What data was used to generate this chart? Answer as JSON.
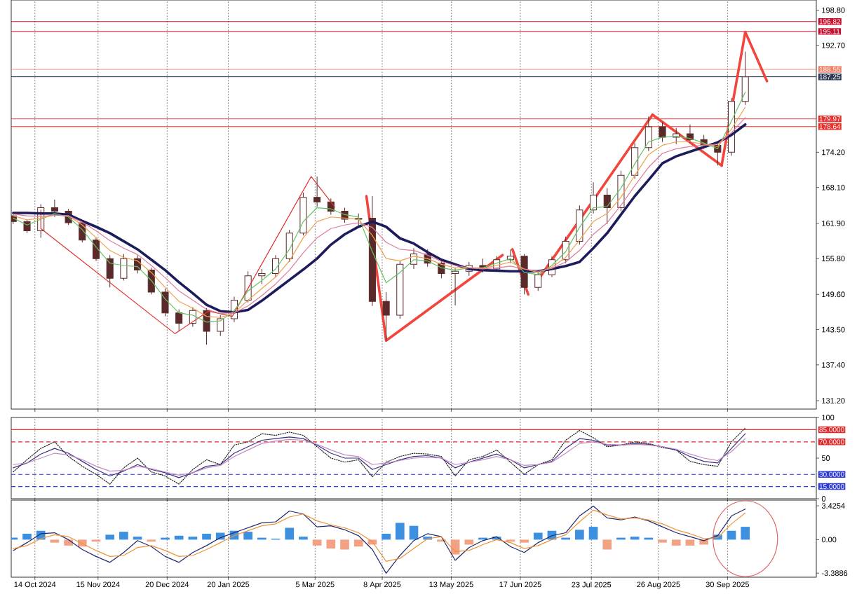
{
  "chart_data": [
    {
      "type": "candlestick",
      "color": "#5a2a2a",
      "x": [
        "2024-10-03",
        "2024-10-10",
        "2024-10-17",
        "2024-10-24",
        "2024-10-31",
        "2024-11-07",
        "2024-11-14",
        "2024-11-21",
        "2024-11-28",
        "2024-12-05",
        "2024-12-12",
        "2024-12-19",
        "2024-12-26",
        "2025-01-02",
        "2025-01-09",
        "2025-01-16",
        "2025-01-23",
        "2025-01-30",
        "2025-02-06",
        "2025-02-13",
        "2025-02-20",
        "2025-02-27",
        "2025-03-06",
        "2025-03-13",
        "2025-03-20",
        "2025-03-27",
        "2025-04-03",
        "2025-04-10",
        "2025-04-17",
        "2025-04-24",
        "2025-05-01",
        "2025-05-08",
        "2025-05-15",
        "2025-05-22",
        "2025-05-29",
        "2025-06-05",
        "2025-06-12",
        "2025-06-19",
        "2025-06-26",
        "2025-07-03",
        "2025-07-10",
        "2025-07-17",
        "2025-07-24",
        "2025-07-31",
        "2025-08-07",
        "2025-08-14",
        "2025-08-21",
        "2025-08-28",
        "2025-09-04",
        "2025-09-11",
        "2025-09-18",
        "2025-09-25",
        "2025-10-02",
        "2025-10-09"
      ],
      "ohlc": [
        [
          163.2,
          163.8,
          161.8,
          162.2
        ],
        [
          162.2,
          162.6,
          160.2,
          160.6
        ],
        [
          160.6,
          165.2,
          159.4,
          164.6
        ],
        [
          164.6,
          166.0,
          163.0,
          164.0
        ],
        [
          164.0,
          164.4,
          161.6,
          162.0
        ],
        [
          162.0,
          162.4,
          158.6,
          159.0
        ],
        [
          159.0,
          159.4,
          155.4,
          155.8
        ],
        [
          155.8,
          156.4,
          150.8,
          152.4
        ],
        [
          152.4,
          156.6,
          152.0,
          155.8
        ],
        [
          155.8,
          156.4,
          153.2,
          153.8
        ],
        [
          153.8,
          154.2,
          149.6,
          150.0
        ],
        [
          150.0,
          150.6,
          145.8,
          146.4
        ],
        [
          146.4,
          147.0,
          143.2,
          144.6
        ],
        [
          144.6,
          147.4,
          144.0,
          146.8
        ],
        [
          146.8,
          147.2,
          140.9,
          143.2
        ],
        [
          143.2,
          146.0,
          142.4,
          145.4
        ],
        [
          145.4,
          149.2,
          144.8,
          148.6
        ],
        [
          148.6,
          153.6,
          148.2,
          152.8
        ],
        [
          152.8,
          154.0,
          151.4,
          153.2
        ],
        [
          153.2,
          156.4,
          152.6,
          155.8
        ],
        [
          155.8,
          160.8,
          155.2,
          160.2
        ],
        [
          160.2,
          167.2,
          159.8,
          166.4
        ],
        [
          166.4,
          170.0,
          164.8,
          165.6
        ],
        [
          165.6,
          166.2,
          163.4,
          164.0
        ],
        [
          164.0,
          164.6,
          162.0,
          162.6
        ],
        [
          162.6,
          163.6,
          161.4,
          162.8
        ],
        [
          162.8,
          166.6,
          147.6,
          148.4
        ],
        [
          148.4,
          150.0,
          141.6,
          146.0
        ],
        [
          146.0,
          155.4,
          145.4,
          154.8
        ],
        [
          154.8,
          157.6,
          154.0,
          156.6
        ],
        [
          156.6,
          157.4,
          154.4,
          155.0
        ],
        [
          155.0,
          155.6,
          152.4,
          153.2
        ],
        [
          153.2,
          154.2,
          147.7,
          153.6
        ],
        [
          153.6,
          155.2,
          152.8,
          154.6
        ],
        [
          154.6,
          155.8,
          153.4,
          154.0
        ],
        [
          154.0,
          156.2,
          153.6,
          155.6
        ],
        [
          155.6,
          157.4,
          155.0,
          156.2
        ],
        [
          156.2,
          156.6,
          149.6,
          150.8
        ],
        [
          150.8,
          153.6,
          150.2,
          153.0
        ],
        [
          153.0,
          156.2,
          152.6,
          155.6
        ],
        [
          155.6,
          159.6,
          155.0,
          158.8
        ],
        [
          158.8,
          165.0,
          158.2,
          164.2
        ],
        [
          164.2,
          169.0,
          163.6,
          166.8
        ],
        [
          166.8,
          168.0,
          161.8,
          164.6
        ],
        [
          164.6,
          171.0,
          164.0,
          170.2
        ],
        [
          170.2,
          175.8,
          169.6,
          175.0
        ],
        [
          175.0,
          180.4,
          174.4,
          178.6
        ],
        [
          178.6,
          179.4,
          176.0,
          176.8
        ],
        [
          176.8,
          178.4,
          175.6,
          177.4
        ],
        [
          177.4,
          179.0,
          175.8,
          176.4
        ],
        [
          176.4,
          177.2,
          174.8,
          175.4
        ],
        [
          175.4,
          176.0,
          171.9,
          174.2
        ],
        [
          174.2,
          183.6,
          173.6,
          183.0
        ],
        [
          183.0,
          191.6,
          182.4,
          187.25
        ]
      ],
      "series": [
        {
          "type": "line",
          "color": "#1c1c5c",
          "values": [
            163.7,
            163.7,
            163.6,
            163.6,
            163.4,
            162.3,
            161.3,
            160.2,
            158.8,
            157.4,
            155.6,
            153.8,
            151.7,
            149.8,
            147.8,
            146.7,
            146.5,
            146.9,
            148.5,
            150.3,
            152.1,
            153.9,
            155.8,
            158.2,
            160.0,
            161.3,
            162.2,
            161.3,
            159.3,
            158.4,
            156.9,
            155.6,
            154.8,
            154.0,
            153.8,
            153.7,
            153.6,
            153.6,
            153.6,
            154.0,
            154.5,
            155.2,
            157.6,
            160.2,
            163.4,
            166.6,
            169.4,
            172.3,
            173.5,
            174.3,
            175.1,
            175.9,
            177.2,
            179.0
          ]
        },
        {
          "type": "line",
          "color": "#66c266",
          "values": [
            162.8,
            161.6,
            162.6,
            163.6,
            163.0,
            160.8,
            157.8,
            155.0,
            154.6,
            154.4,
            152.0,
            148.8,
            146.4,
            146.0,
            144.8,
            145.0,
            146.8,
            150.2,
            152.0,
            154.0,
            157.4,
            162.2,
            164.6,
            164.4,
            163.4,
            163.0,
            157.0,
            151.6,
            153.4,
            155.6,
            155.4,
            154.2,
            153.8,
            154.2,
            154.2,
            155.0,
            155.8,
            153.4,
            153.0,
            154.6,
            157.0,
            161.2,
            164.6,
            164.8,
            168.0,
            172.2,
            176.0,
            176.8,
            177.0,
            176.6,
            175.8,
            174.8,
            179.6,
            184.6
          ]
        },
        {
          "type": "line",
          "color": "#f0a050",
          "values": [
            163.2,
            162.5,
            162.8,
            163.3,
            163.2,
            161.6,
            159.4,
            157.2,
            156.0,
            155.4,
            153.4,
            150.8,
            148.4,
            147.2,
            145.8,
            145.6,
            146.4,
            148.6,
            150.6,
            152.6,
            155.4,
            159.4,
            162.2,
            163.0,
            162.8,
            162.6,
            159.8,
            155.8,
            155.4,
            156.2,
            155.8,
            154.8,
            154.2,
            154.2,
            154.1,
            154.6,
            155.2,
            154.0,
            153.4,
            154.3,
            156.0,
            159.0,
            162.2,
            163.6,
            166.4,
            170.2,
            173.8,
            175.4,
            176.0,
            176.0,
            175.6,
            175.2,
            178.2,
            182.0
          ]
        },
        {
          "type": "line",
          "color": "#e07aa0",
          "values": [
            163.5,
            163.2,
            163.1,
            163.3,
            163.2,
            162.1,
            160.6,
            158.9,
            157.6,
            156.5,
            154.6,
            152.5,
            150.2,
            148.6,
            147.0,
            146.3,
            146.4,
            147.6,
            149.4,
            151.4,
            153.8,
            156.8,
            159.4,
            161.0,
            161.6,
            162.0,
            161.2,
            158.6,
            157.4,
            157.2,
            156.4,
            155.3,
            154.6,
            154.2,
            154.0,
            154.2,
            154.5,
            154.0,
            153.6,
            154.1,
            155.2,
            157.2,
            160.0,
            162.0,
            165.0,
            168.4,
            171.6,
            174.0,
            174.8,
            175.2,
            175.4,
            175.6,
            177.6,
            180.2
          ]
        },
        {
          "type": "line",
          "color": "#e0302c",
          "x": [
            "2024-10-17",
            "2024-10-17",
            "2024-12-24",
            "2025-01-10",
            "2025-01-22",
            "2025-03-03",
            "2025-03-15"
          ],
          "values": [
            164.2,
            161.0,
            142.8,
            146.7,
            145.8,
            170.0,
            164.7
          ]
        },
        {
          "type": "line",
          "color": "#f2453d",
          "x": [
            "2025-03-31",
            "2025-04-10",
            "2025-06-08"
          ],
          "values": [
            166.6,
            141.6,
            156.4
          ]
        },
        {
          "type": "line",
          "color": "#f2453d",
          "x": [
            "2025-06-13",
            "2025-06-21"
          ],
          "values": [
            157.4,
            149.6
          ]
        },
        {
          "type": "line",
          "color": "#f2453d",
          "x": [
            "2025-06-26",
            "2025-08-23"
          ],
          "values": [
            152.1,
            180.7
          ]
        },
        {
          "type": "line",
          "color": "#f2453d",
          "x": [
            "2025-08-23",
            "2025-09-27"
          ],
          "values": [
            180.7,
            171.9
          ]
        },
        {
          "type": "line",
          "color": "#f2453d",
          "x": [
            "2025-09-27",
            "2025-10-09"
          ],
          "values": [
            171.9,
            195.0
          ]
        },
        {
          "type": "line",
          "color": "#f2453d",
          "x": [
            "2025-10-09",
            "2025-10-20"
          ],
          "values": [
            195.0,
            186.5
          ]
        }
      ],
      "xlim": [
        "2024-10-02",
        "2025-11-14"
      ],
      "xticks": [
        {
          "value": "2024-10-14",
          "label": null
        },
        {
          "value": "2024-11-15",
          "label": null
        },
        {
          "value": "2024-12-20",
          "label": null
        },
        {
          "value": "2025-01-20",
          "label": null
        },
        {
          "value": "2025-03-05",
          "label": null
        },
        {
          "value": "2025-04-08",
          "label": null
        },
        {
          "value": "2025-05-13",
          "label": null
        },
        {
          "value": "2025-06-17",
          "label": null
        },
        {
          "value": "2025-07-23",
          "label": null
        },
        {
          "value": "2025-08-26",
          "label": null
        },
        {
          "value": "2025-09-30",
          "label": null
        }
      ],
      "ylim": [
        129.75,
        200.55
      ],
      "yticks": [
        {
          "value": 131.2,
          "label": "131.20"
        },
        {
          "value": 137.4,
          "label": "137.40"
        },
        {
          "value": 143.5,
          "label": "143.50"
        },
        {
          "value": 149.6,
          "label": "149.60"
        },
        {
          "value": 155.8,
          "label": "155.80"
        },
        {
          "value": 161.9,
          "label": "161.90"
        },
        {
          "value": 168.1,
          "label": "168.10"
        },
        {
          "value": 174.2,
          "label": "174.20"
        },
        {
          "value": 192.7,
          "label": "192.70"
        },
        {
          "value": 198.8,
          "label": "198.80"
        }
      ],
      "ref_lines": [
        {
          "axis": "y",
          "value": 196.82,
          "label": "196.82",
          "color": "#c8102e"
        },
        {
          "axis": "y",
          "value": 195.11,
          "label": "195.11",
          "color": "#c8102e"
        },
        {
          "axis": "y",
          "value": 188.55,
          "label": "188.55",
          "color": "#f0826a"
        },
        {
          "axis": "y",
          "value": 187.25,
          "label": "187.25",
          "color": "#2f3a55"
        },
        {
          "axis": "y",
          "value": 179.97,
          "label": "179.97",
          "color": "#e8302c"
        },
        {
          "axis": "y",
          "value": 178.64,
          "label": "178.64",
          "color": "#e8302c"
        }
      ],
      "grid": "x",
      "tick_labels": "y"
    },
    {
      "type": "line",
      "x": [
        "2024-10-03",
        "2024-10-10",
        "2024-10-17",
        "2024-10-24",
        "2024-10-31",
        "2024-11-07",
        "2024-11-14",
        "2024-11-21",
        "2024-11-28",
        "2024-12-05",
        "2024-12-12",
        "2024-12-19",
        "2024-12-26",
        "2025-01-02",
        "2025-01-09",
        "2025-01-16",
        "2025-01-23",
        "2025-01-30",
        "2025-02-06",
        "2025-02-13",
        "2025-02-20",
        "2025-02-27",
        "2025-03-06",
        "2025-03-13",
        "2025-03-20",
        "2025-03-27",
        "2025-04-03",
        "2025-04-10",
        "2025-04-17",
        "2025-04-24",
        "2025-05-01",
        "2025-05-08",
        "2025-05-15",
        "2025-05-22",
        "2025-05-29",
        "2025-06-05",
        "2025-06-12",
        "2025-06-19",
        "2025-06-26",
        "2025-07-03",
        "2025-07-10",
        "2025-07-17",
        "2025-07-24",
        "2025-07-31",
        "2025-08-07",
        "2025-08-14",
        "2025-08-21",
        "2025-08-28",
        "2025-09-04",
        "2025-09-11",
        "2025-09-18",
        "2025-09-25",
        "2025-10-02",
        "2025-10-09"
      ],
      "series": [
        {
          "type": "line",
          "color": "#222222",
          "line_style": "dotted",
          "values": [
            33,
            48,
            62,
            70,
            52,
            40,
            30,
            18,
            38,
            50,
            33,
            28,
            18,
            36,
            48,
            42,
            66,
            70,
            80,
            78,
            82,
            78,
            64,
            50,
            45,
            48,
            27,
            45,
            52,
            56,
            55,
            52,
            28,
            48,
            52,
            60,
            45,
            30,
            42,
            48,
            72,
            84,
            75,
            64,
            66,
            70,
            68,
            63,
            60,
            46,
            42,
            40,
            70,
            87
          ]
        },
        {
          "type": "line",
          "color": "#3b2f86",
          "line_style": "solid",
          "values": [
            38,
            44,
            55,
            62,
            56,
            46,
            36,
            28,
            34,
            42,
            36,
            32,
            26,
            32,
            40,
            42,
            56,
            64,
            72,
            74,
            76,
            74,
            66,
            56,
            50,
            50,
            36,
            42,
            48,
            52,
            53,
            50,
            38,
            45,
            50,
            55,
            48,
            38,
            42,
            46,
            62,
            74,
            72,
            66,
            66,
            68,
            67,
            64,
            60,
            52,
            46,
            44,
            62,
            80
          ]
        },
        {
          "type": "line",
          "color": "#c48ac0",
          "line_style": "solid",
          "values": [
            42,
            44,
            50,
            56,
            54,
            48,
            40,
            34,
            35,
            40,
            37,
            33,
            29,
            32,
            38,
            41,
            52,
            60,
            68,
            71,
            73,
            72,
            67,
            60,
            54,
            52,
            42,
            44,
            47,
            50,
            51,
            50,
            42,
            45,
            48,
            52,
            48,
            41,
            42,
            45,
            56,
            68,
            70,
            67,
            66,
            67,
            66,
            64,
            61,
            55,
            50,
            47,
            58,
            74
          ]
        }
      ],
      "xlim": [
        "2024-10-02",
        "2025-11-14"
      ],
      "xticks": [
        {
          "value": "2024-10-14",
          "label": null
        },
        {
          "value": "2024-11-15",
          "label": null
        },
        {
          "value": "2024-12-20",
          "label": null
        },
        {
          "value": "2025-01-20",
          "label": null
        },
        {
          "value": "2025-03-05",
          "label": null
        },
        {
          "value": "2025-04-08",
          "label": null
        },
        {
          "value": "2025-05-13",
          "label": null
        },
        {
          "value": "2025-06-17",
          "label": null
        },
        {
          "value": "2025-07-23",
          "label": null
        },
        {
          "value": "2025-08-26",
          "label": null
        },
        {
          "value": "2025-09-30",
          "label": null
        }
      ],
      "ylim": [
        0,
        100
      ],
      "yticks": [
        100,
        50,
        0
      ],
      "ref_lines": [
        {
          "axis": "y",
          "value": 85,
          "label": "85.0000",
          "color": "#e0292b",
          "line_style": "solid"
        },
        {
          "axis": "y",
          "value": 70,
          "label": "70.0000",
          "color": "#e0292b",
          "line_style": "dashed"
        },
        {
          "axis": "y",
          "value": 30,
          "label": "30.0000",
          "color": "#2d3ad6",
          "line_style": "dashed"
        },
        {
          "axis": "y",
          "value": 15,
          "label": "15.0000",
          "color": "#2d3ad6",
          "line_style": "dashed"
        }
      ],
      "grid": "x",
      "tick_labels": "y"
    },
    {
      "type": "bar",
      "x": [
        "2024-10-03",
        "2024-10-10",
        "2024-10-17",
        "2024-10-24",
        "2024-10-31",
        "2024-11-07",
        "2024-11-14",
        "2024-11-21",
        "2024-11-28",
        "2024-12-05",
        "2024-12-12",
        "2024-12-19",
        "2024-12-26",
        "2025-01-02",
        "2025-01-09",
        "2025-01-16",
        "2025-01-23",
        "2025-01-30",
        "2025-02-06",
        "2025-02-13",
        "2025-02-20",
        "2025-02-27",
        "2025-03-06",
        "2025-03-13",
        "2025-03-20",
        "2025-03-27",
        "2025-04-03",
        "2025-04-10",
        "2025-04-17",
        "2025-04-24",
        "2025-05-01",
        "2025-05-08",
        "2025-05-15",
        "2025-05-22",
        "2025-05-29",
        "2025-06-05",
        "2025-06-12",
        "2025-06-19",
        "2025-06-26",
        "2025-07-03",
        "2025-07-10",
        "2025-07-17",
        "2025-07-24",
        "2025-07-31",
        "2025-08-07",
        "2025-08-14",
        "2025-08-21",
        "2025-08-28",
        "2025-09-04",
        "2025-09-11",
        "2025-09-18",
        "2025-09-25",
        "2025-10-02",
        "2025-10-09"
      ],
      "series": [
        {
          "type": "bar",
          "values": [
            0.2,
            0.6,
            0.9,
            -0.3,
            -0.6,
            -0.7,
            -0.2,
            0.5,
            0.8,
            0.3,
            -0.2,
            0.2,
            0.4,
            0.3,
            0.6,
            0.7,
            0.9,
            0.8,
            0.2,
            0.1,
            1.2,
            0.3,
            -0.6,
            -0.9,
            -1.0,
            -0.7,
            -0.5,
            0.6,
            1.7,
            1.4,
            0.3,
            -0.2,
            -1.5,
            -0.5,
            0.2,
            0.3,
            -0.2,
            -0.3,
            0.7,
            0.9,
            0.2,
            1.0,
            1.3,
            -1.0,
            0.2,
            0.3,
            0.2,
            -0.3,
            -0.6,
            -0.6,
            -0.5,
            0.5,
            0.9,
            1.3
          ],
          "colors": [
            "#3d8fe0",
            "#3d8fe0",
            "#3d8fe0",
            "#f2a283",
            "#f2a283",
            "#f2a283",
            "#f2a283",
            "#3d8fe0",
            "#3d8fe0",
            "#3d8fe0",
            "#f2a283",
            "#3d8fe0",
            "#3d8fe0",
            "#3d8fe0",
            "#3d8fe0",
            "#3d8fe0",
            "#3d8fe0",
            "#3d8fe0",
            "#3d8fe0",
            "#3d8fe0",
            "#3d8fe0",
            "#3d8fe0",
            "#f2a283",
            "#f2a283",
            "#f2a283",
            "#f2a283",
            "#f2a283",
            "#3d8fe0",
            "#3d8fe0",
            "#3d8fe0",
            "#3d8fe0",
            "#f2a283",
            "#f2a283",
            "#f2a283",
            "#3d8fe0",
            "#3d8fe0",
            "#f2a283",
            "#f2a283",
            "#3d8fe0",
            "#3d8fe0",
            "#3d8fe0",
            "#3d8fe0",
            "#3d8fe0",
            "#f2a283",
            "#3d8fe0",
            "#3d8fe0",
            "#3d8fe0",
            "#f2a283",
            "#f2a283",
            "#f2a283",
            "#f2a283",
            "#3d8fe0",
            "#3d8fe0",
            "#3d8fe0"
          ]
        },
        {
          "type": "line",
          "color": "#1f2a6b",
          "values": [
            -1.1,
            -0.3,
            0.6,
            0.7,
            0.0,
            -1.0,
            -1.7,
            -2.3,
            -1.3,
            -0.1,
            -0.7,
            -1.7,
            -2.3,
            -1.3,
            -0.6,
            0.2,
            0.7,
            1.2,
            1.7,
            1.8,
            2.9,
            2.6,
            1.3,
            1.4,
            1.0,
            0.4,
            -1.0,
            -3.4,
            -1.6,
            -0.1,
            0.6,
            0.3,
            -2.1,
            -0.8,
            -0.1,
            0.3,
            -0.7,
            -1.3,
            -0.3,
            0.4,
            0.7,
            2.4,
            3.4,
            2.2,
            2.0,
            2.3,
            1.9,
            1.3,
            0.7,
            0.3,
            -0.1,
            0.4,
            2.4,
            3.1
          ]
        },
        {
          "type": "line",
          "color": "#f0913a",
          "values": [
            -0.9,
            -0.6,
            0.1,
            0.5,
            0.3,
            -0.4,
            -1.1,
            -1.7,
            -1.6,
            -0.8,
            -0.6,
            -1.1,
            -1.7,
            -1.6,
            -1.0,
            -0.3,
            0.4,
            0.9,
            1.4,
            1.6,
            2.3,
            2.6,
            1.9,
            1.5,
            1.2,
            0.7,
            -0.2,
            -2.2,
            -1.9,
            -0.9,
            0.1,
            0.3,
            -1.2,
            -1.1,
            -0.5,
            0.0,
            -0.3,
            -0.9,
            -0.6,
            0.0,
            0.5,
            1.8,
            3.0,
            2.5,
            2.1,
            2.2,
            2.0,
            1.6,
            1.0,
            0.6,
            0.1,
            0.2,
            1.6,
            2.7
          ]
        }
      ],
      "xlim": [
        "2024-10-02",
        "2025-11-14"
      ],
      "xticks": [
        {
          "value": "2024-10-14",
          "label": "14 Oct 2024"
        },
        {
          "value": "2024-11-15",
          "label": "15 Nov 2024"
        },
        {
          "value": "2024-12-20",
          "label": "20 Dec 2024"
        },
        {
          "value": "2025-01-20",
          "label": "20 Jan 2025"
        },
        {
          "value": "2025-03-05",
          "label": "5 Mar 2025"
        },
        {
          "value": "2025-04-08",
          "label": "8 Apr 2025"
        },
        {
          "value": "2025-05-13",
          "label": "13 May 2025"
        },
        {
          "value": "2025-06-17",
          "label": "17 Jun 2025"
        },
        {
          "value": "2025-07-23",
          "label": "23 Jul 2025"
        },
        {
          "value": "2025-08-26",
          "label": "26 Aug 2025"
        },
        {
          "value": "2025-09-30",
          "label": "30 Sep 2025"
        }
      ],
      "ylim": [
        -3.8,
        4.0
      ],
      "yticks": [
        3.4254,
        {
          "value": 0,
          "label": "0.00"
        },
        -3.3886
      ],
      "grid": "x"
    }
  ]
}
